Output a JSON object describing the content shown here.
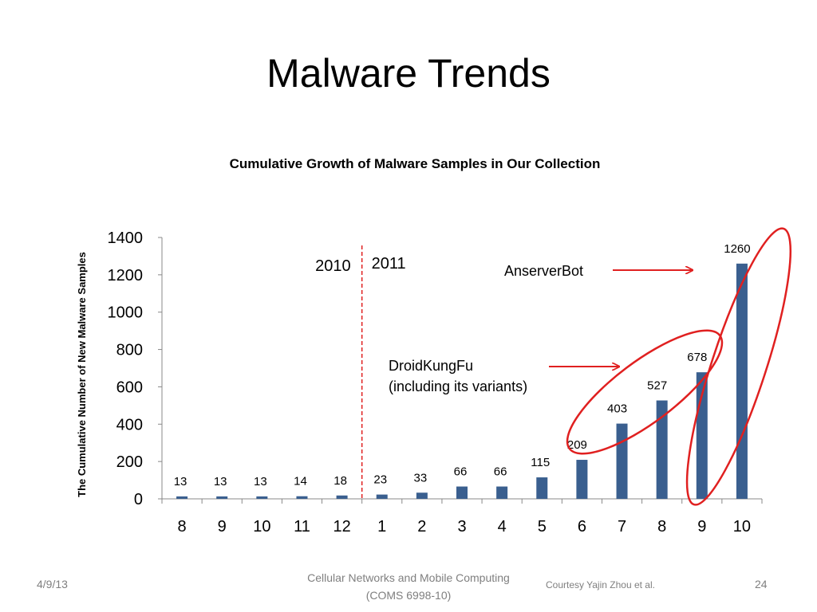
{
  "slide": {
    "title": "Malware Trends"
  },
  "footer": {
    "date": "4/9/13",
    "course_line1": "Cellular Networks and Mobile Computing",
    "course_line2": "(COMS 6998-10)",
    "credit": "Courtesy Yajin Zhou et al.",
    "page_number": "24"
  },
  "chart_data": {
    "type": "bar",
    "title": "Cumulative Growth of Malware Samples in Our Collection",
    "xlabel": "",
    "ylabel": "The Cumulative Number of New Malware Samples",
    "categories": [
      "8",
      "9",
      "10",
      "11",
      "12",
      "1",
      "2",
      "3",
      "4",
      "5",
      "6",
      "7",
      "8",
      "9",
      "10"
    ],
    "values": [
      13,
      13,
      13,
      14,
      18,
      23,
      33,
      66,
      66,
      115,
      209,
      403,
      527,
      678,
      1260
    ],
    "data_labels": [
      "13",
      "13",
      "13",
      "14",
      "18",
      "23",
      "33",
      "66",
      "66",
      "115",
      "209",
      "403",
      "527",
      "678",
      "1260"
    ],
    "ylim": [
      0,
      1400
    ],
    "yticks": [
      "0",
      "200",
      "400",
      "600",
      "800",
      "1000",
      "1200",
      "1400"
    ],
    "grid": false,
    "bar_color": "#3A5F8F",
    "year_divider": {
      "after_category_index": 4,
      "left_label": "2010",
      "right_label": "2011",
      "color": "#E02020"
    },
    "annotations": [
      {
        "text": "AnserverBot",
        "arrow_to_category_index": 14,
        "color": "#E02020"
      },
      {
        "text": "DroidKungFu",
        "text_line2": "(including its variants)",
        "arrow_to_category_index": 11,
        "color": "#E02020"
      }
    ]
  }
}
